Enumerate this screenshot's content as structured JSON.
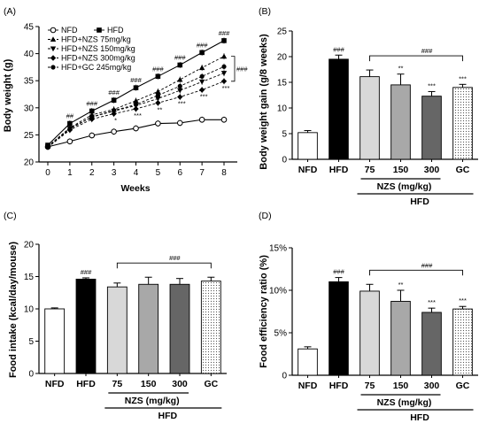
{
  "chart_data": [
    {
      "panel": "(A)",
      "type": "line",
      "xlabel": "Weeks",
      "ylabel": "Body weight (g)",
      "x": [
        0,
        1,
        2,
        3,
        4,
        5,
        6,
        7,
        8
      ],
      "xticks": [
        "0",
        "1",
        "2",
        "3",
        "4",
        "5",
        "6",
        "7",
        "8"
      ],
      "ylim": [
        20,
        45
      ],
      "yticks": [
        "20",
        "25",
        "30",
        "35",
        "40",
        "45"
      ],
      "series": [
        {
          "name": "NFD",
          "marker": "open-circle",
          "dash": false,
          "values": [
            22.8,
            23.8,
            24.9,
            25.6,
            26.2,
            27.1,
            27.2,
            27.8,
            27.8
          ]
        },
        {
          "name": "HFD",
          "marker": "square",
          "dash": false,
          "values": [
            23.1,
            27.1,
            29.4,
            31.4,
            33.7,
            35.8,
            37.9,
            40.2,
            42.4
          ]
        },
        {
          "name": "HFD+NZS 75mg/kg",
          "marker": "triangle-up",
          "dash": true,
          "values": [
            22.9,
            26.3,
            28.7,
            29.7,
            31.3,
            33.0,
            35.2,
            37.4,
            39.5
          ]
        },
        {
          "name": "HFD+NZS 150mg/kg",
          "marker": "triangle-down",
          "dash": true,
          "values": [
            22.8,
            26.2,
            28.3,
            29.4,
            30.4,
            31.7,
            33.2,
            34.8,
            36.4
          ]
        },
        {
          "name": "HFD+NZS 300mg/kg",
          "marker": "diamond",
          "dash": true,
          "values": [
            22.7,
            25.9,
            27.9,
            28.9,
            29.8,
            30.9,
            32.0,
            33.3,
            34.9
          ]
        },
        {
          "name": "HFD+GC 245mg/kg",
          "marker": "circle",
          "dash": true,
          "values": [
            22.7,
            26.1,
            28.3,
            29.5,
            30.6,
            32.3,
            34.0,
            35.8,
            37.6
          ]
        }
      ],
      "annotations": {
        "hfd": [
          "",
          "##",
          "###",
          "###",
          "###",
          "###",
          "###",
          "###",
          "###"
        ],
        "treated": [
          "",
          "",
          "",
          "*",
          "***",
          "**",
          "***",
          "***",
          "***"
        ],
        "bracket": "###"
      }
    },
    {
      "panel": "(B)",
      "type": "bar",
      "ylabel": "Body weight gain  (g/8 weeks)",
      "categories": [
        "NFD",
        "HFD",
        "75",
        "150",
        "300",
        "GC"
      ],
      "values": [
        5.2,
        19.5,
        16.1,
        14.5,
        12.3,
        14.0
      ],
      "errors": [
        0.4,
        0.8,
        1.3,
        2.1,
        0.9,
        0.6
      ],
      "ylim": [
        0,
        25
      ],
      "yticks": [
        "0",
        "5",
        "10",
        "15",
        "20",
        "25"
      ],
      "colors": [
        "#ffffff",
        "#000000",
        "#d8d8d8",
        "#a8a8a8",
        "#666666",
        "#ffffff"
      ],
      "patterns": [
        "none",
        "none",
        "none",
        "none",
        "none",
        "dots"
      ],
      "labels": [
        "",
        "###",
        "",
        "**",
        "***",
        "***"
      ],
      "bracket": "###",
      "group_label": "NZS (mg/kg)",
      "outer_label": "HFD"
    },
    {
      "panel": "(C)",
      "type": "bar",
      "ylabel": "Food intake (kcal/day/mouse)",
      "categories": [
        "NFD",
        "HFD",
        "75",
        "150",
        "300",
        "GC"
      ],
      "values": [
        10.0,
        14.6,
        13.4,
        13.8,
        13.8,
        14.3
      ],
      "errors": [
        0.15,
        0.2,
        0.6,
        1.1,
        0.9,
        0.6
      ],
      "ylim": [
        0,
        20
      ],
      "yticks": [
        "0",
        "5",
        "10",
        "15",
        "20"
      ],
      "colors": [
        "#ffffff",
        "#000000",
        "#d8d8d8",
        "#a8a8a8",
        "#666666",
        "#ffffff"
      ],
      "patterns": [
        "none",
        "none",
        "none",
        "none",
        "none",
        "dots"
      ],
      "labels": [
        "",
        "###",
        "",
        "",
        "",
        ""
      ],
      "bracket": "###",
      "group_label": "NZS (mg/kg)",
      "outer_label": "HFD"
    },
    {
      "panel": "(D)",
      "type": "bar",
      "ylabel": "Food efficiency ratio (%)",
      "categories": [
        "NFD",
        "HFD",
        "75",
        "150",
        "300",
        "GC"
      ],
      "values": [
        3.1,
        11.0,
        9.9,
        8.7,
        7.4,
        7.8
      ],
      "errors": [
        0.25,
        0.5,
        0.8,
        1.3,
        0.5,
        0.3
      ],
      "ylim": [
        0,
        15
      ],
      "yticks": [
        "0",
        "5%",
        "10%",
        "15%"
      ],
      "colors": [
        "#ffffff",
        "#000000",
        "#d8d8d8",
        "#a8a8a8",
        "#666666",
        "#ffffff"
      ],
      "patterns": [
        "none",
        "none",
        "none",
        "none",
        "none",
        "dots"
      ],
      "labels": [
        "",
        "###",
        "",
        "**",
        "***",
        "***"
      ],
      "bracket": "###",
      "group_label": "NZS (mg/kg)",
      "outer_label": "HFD"
    }
  ]
}
